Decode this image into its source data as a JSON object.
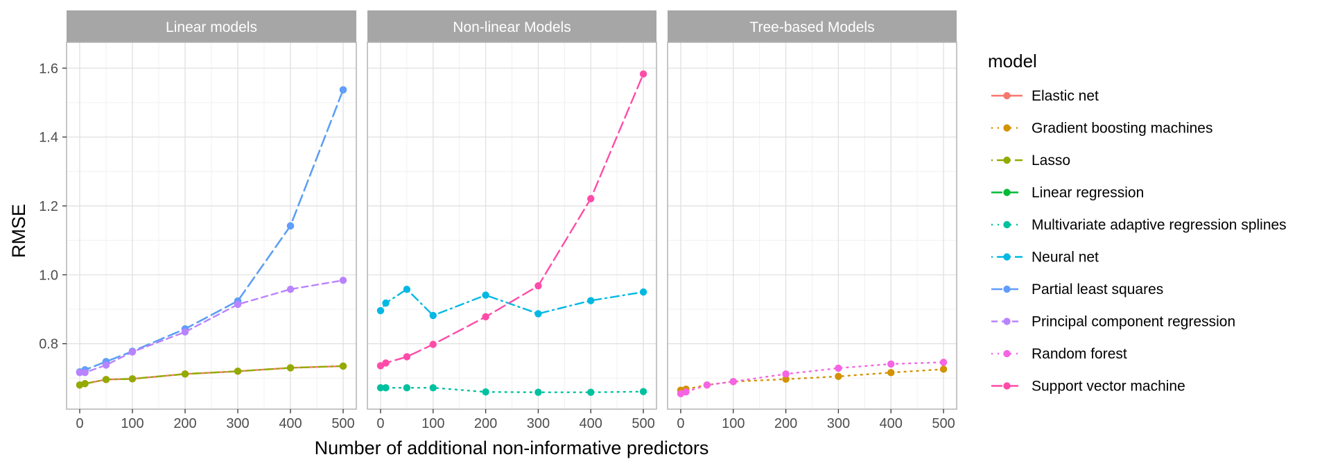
{
  "chart_data": {
    "type": "line",
    "ylabel": "RMSE",
    "xlabel": "Number of additional non-informative predictors",
    "x": [
      0,
      10,
      50,
      100,
      200,
      300,
      400,
      500
    ],
    "xlim": [
      -25,
      525
    ],
    "ylim": [
      0.61,
      1.675
    ],
    "x_ticks": [
      0,
      100,
      200,
      300,
      400,
      500
    ],
    "y_ticks": [
      0.8,
      1.0,
      1.2,
      1.4,
      1.6
    ],
    "y_tick_labels": [
      "0.8",
      "1.0",
      "1.2",
      "1.4",
      "1.6"
    ],
    "grid": true,
    "legend": {
      "title": "model",
      "position": "right"
    },
    "panels": [
      {
        "title": "Linear models",
        "series": [
          "Elastic net",
          "Lasso",
          "Linear regression",
          "Partial least squares",
          "Principal component regression"
        ]
      },
      {
        "title": "Non-linear Models",
        "series": [
          "Multivariate adaptive regression splines",
          "Neural net",
          "Support vector machine"
        ]
      },
      {
        "title": "Tree-based Models",
        "series": [
          "Gradient boosting machines",
          "Random forest"
        ]
      }
    ],
    "series": [
      {
        "name": "Elastic net",
        "color": "#F8766D",
        "dash": "solid",
        "values": [
          0.68,
          0.684,
          0.696,
          0.698,
          0.712,
          0.72,
          0.73,
          0.735
        ]
      },
      {
        "name": "Gradient boosting machines",
        "color": "#D39200",
        "dash": "dotted",
        "values": [
          0.665,
          0.668,
          0.68,
          0.69,
          0.697,
          0.705,
          0.716,
          0.726
        ]
      },
      {
        "name": "Lasso",
        "color": "#93AA00",
        "dash": "dotdash",
        "values": [
          0.68,
          0.684,
          0.696,
          0.698,
          0.712,
          0.72,
          0.73,
          0.735
        ]
      },
      {
        "name": "Linear regression",
        "color": "#00BA38",
        "dash": "longdash",
        "values": [
          0.718,
          0.724,
          0.748,
          0.778,
          0.843,
          0.924,
          1.142,
          1.537
        ]
      },
      {
        "name": "Multivariate adaptive regression splines",
        "color": "#00C19F",
        "dash": "dotted",
        "values": [
          0.672,
          0.672,
          0.672,
          0.672,
          0.66,
          0.659,
          0.659,
          0.661
        ]
      },
      {
        "name": "Neural net",
        "color": "#00B9E3",
        "dash": "dotdash",
        "values": [
          0.896,
          0.918,
          0.958,
          0.882,
          0.941,
          0.887,
          0.925,
          0.95
        ]
      },
      {
        "name": "Partial least squares",
        "color": "#619CFF",
        "dash": "longdash",
        "values": [
          0.718,
          0.724,
          0.748,
          0.778,
          0.843,
          0.924,
          1.142,
          1.537
        ]
      },
      {
        "name": "Principal component regression",
        "color": "#B983FF",
        "dash": "dashed",
        "values": [
          0.716,
          0.716,
          0.738,
          0.776,
          0.834,
          0.914,
          0.958,
          0.984
        ]
      },
      {
        "name": "Random forest",
        "color": "#F564E3",
        "dash": "dotted",
        "values": [
          0.655,
          0.66,
          0.68,
          0.69,
          0.712,
          0.729,
          0.741,
          0.746
        ]
      },
      {
        "name": "Support vector machine",
        "color": "#FF4BA8",
        "dash": "longdash",
        "values": [
          0.736,
          0.744,
          0.762,
          0.798,
          0.878,
          0.968,
          1.221,
          1.583
        ]
      }
    ]
  }
}
